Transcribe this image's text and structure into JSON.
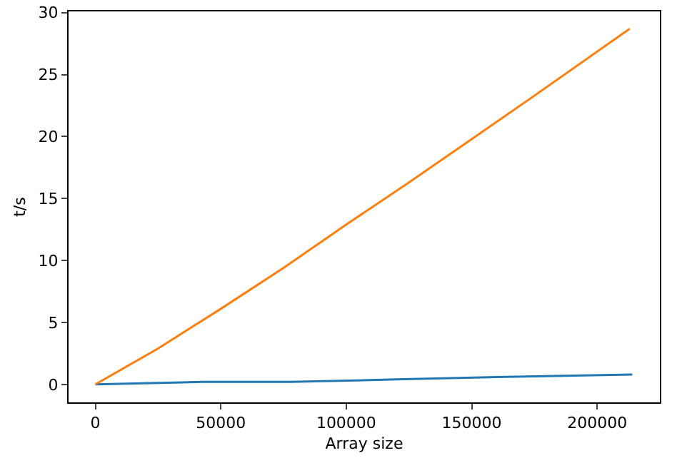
{
  "chart_data": {
    "type": "line",
    "xlabel": "Array size",
    "ylabel": "t/s",
    "xlim": [
      -10700,
      225000
    ],
    "ylim": [
      -1.45,
      30.1
    ],
    "xticks": [
      0,
      50000,
      100000,
      150000,
      200000
    ],
    "yticks": [
      0,
      5,
      10,
      15,
      20,
      25,
      30
    ],
    "grid": false,
    "series": [
      {
        "color": "#1f77b4",
        "x": [
          0,
          43000,
          78000,
          120000,
          160000,
          214000
        ],
        "values": [
          0,
          0.2,
          0.2,
          0.4,
          0.6,
          0.8
        ]
      },
      {
        "color": "#ff7f0e",
        "x": [
          0,
          25000,
          50000,
          75000,
          100000,
          125000,
          150000,
          175000,
          213000
        ],
        "values": [
          0,
          2.9,
          6.1,
          9.4,
          12.9,
          16.3,
          19.8,
          23.3,
          28.7
        ]
      }
    ]
  }
}
